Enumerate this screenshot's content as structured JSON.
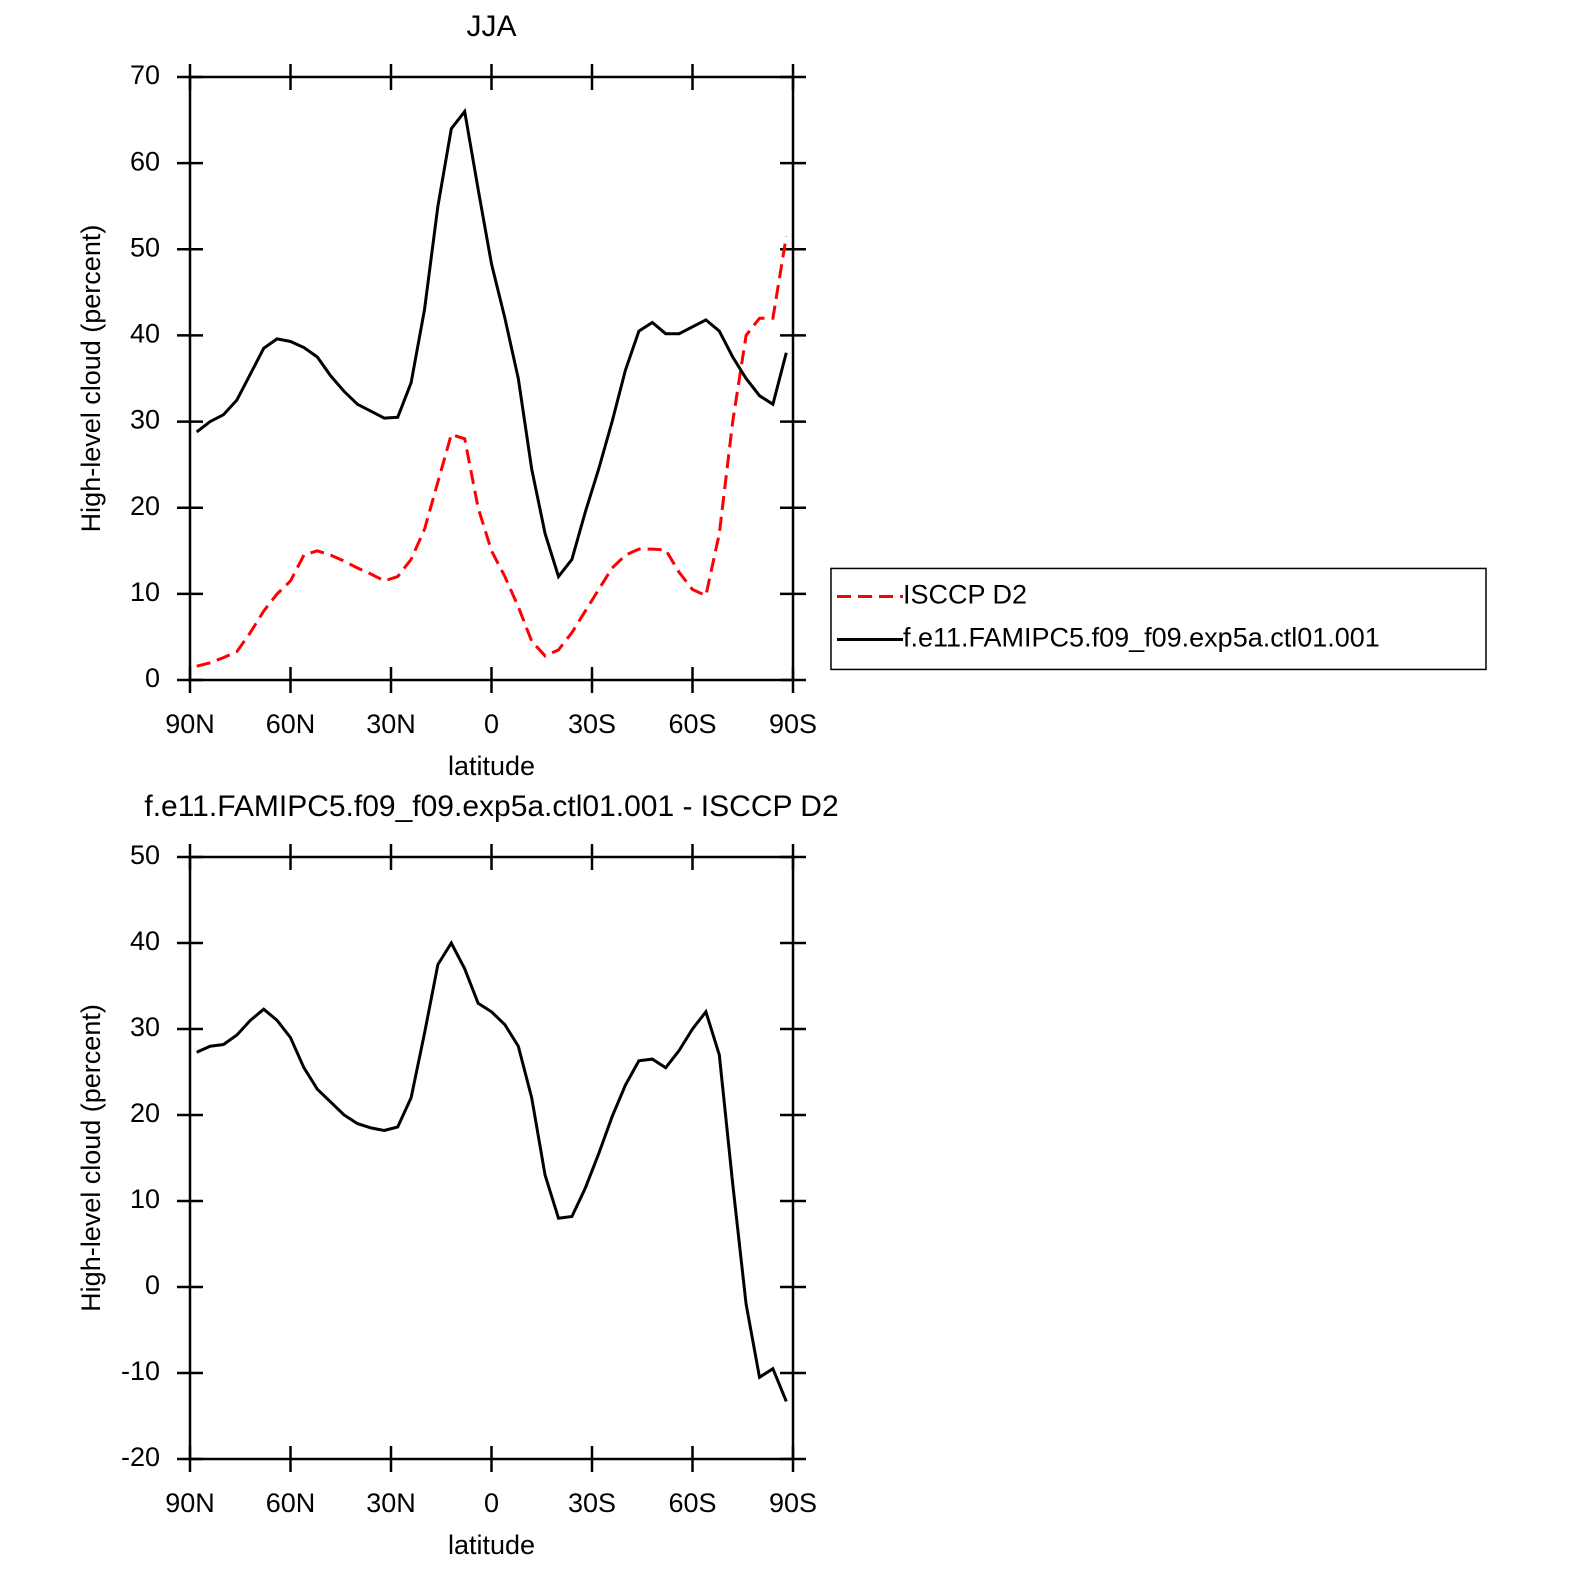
{
  "chart_data": [
    {
      "type": "line",
      "title": "JJA",
      "xlabel": "latitude",
      "ylabel": "High-level cloud (percent)",
      "x": [
        88,
        84,
        80,
        76,
        72,
        68,
        64,
        60,
        56,
        52,
        48,
        44,
        40,
        36,
        32,
        28,
        24,
        20,
        16,
        12,
        8,
        4,
        0,
        -4,
        -8,
        -12,
        -16,
        -20,
        -24,
        -28,
        -32,
        -36,
        -40,
        -44,
        -48,
        -52,
        -56,
        -60,
        -64,
        -68,
        -72,
        -76,
        -80,
        -84,
        -88
      ],
      "xlim": [
        90,
        -90
      ],
      "xticks": [
        {
          "value": 90,
          "label": "90N"
        },
        {
          "value": 60,
          "label": "60N"
        },
        {
          "value": 30,
          "label": "30N"
        },
        0,
        {
          "value": -30,
          "label": "30S"
        },
        {
          "value": -60,
          "label": "60S"
        },
        {
          "value": -90,
          "label": "90S"
        }
      ],
      "ylim": [
        0,
        70
      ],
      "yticks": [
        0,
        10,
        20,
        30,
        40,
        50,
        60,
        70
      ],
      "legend": "right",
      "series": [
        {
          "name": "ISCCP D2",
          "color": "#ff0000",
          "linestyle": "dashed",
          "values": [
            1.6,
            2,
            2.6,
            3.3,
            5.5,
            8,
            10,
            11.5,
            14.5,
            15,
            14.5,
            13.8,
            13,
            12.3,
            11.5,
            12,
            14,
            17.5,
            23,
            28.5,
            28,
            20,
            15,
            12,
            8.5,
            4.5,
            2.8,
            3.5,
            5.5,
            8,
            10.5,
            13,
            14.5,
            15.2,
            15.2,
            15.1,
            12.5,
            10.5,
            9.8,
            17,
            30,
            40,
            42,
            42,
            51.5
          ]
        },
        {
          "name": "f.e11.FAMIPC5.f09_f09.exp5a.ctl01.001",
          "color": "#000000",
          "linestyle": "solid",
          "values": [
            28.8,
            30,
            30.8,
            32.5,
            35.5,
            38.5,
            39.6,
            39.3,
            38.6,
            37.5,
            35.3,
            33.5,
            32,
            31.2,
            30.4,
            30.5,
            34.5,
            43,
            55,
            64,
            66,
            57,
            48.3,
            42,
            35,
            24.5,
            17,
            12,
            14,
            19.5,
            24.5,
            30,
            36,
            40.5,
            41.5,
            40.2,
            40.2,
            41,
            41.8,
            40.5,
            37.5,
            35,
            33,
            32,
            38
          ]
        }
      ]
    },
    {
      "type": "line",
      "title": "f.e11.FAMIPC5.f09_f09.exp5a.ctl01.001 - ISCCP D2",
      "xlabel": "latitude",
      "ylabel": "High-level cloud (percent)",
      "x": [
        88,
        84,
        80,
        76,
        72,
        68,
        64,
        60,
        56,
        52,
        48,
        44,
        40,
        36,
        32,
        28,
        24,
        20,
        16,
        12,
        8,
        4,
        0,
        -4,
        -8,
        -12,
        -16,
        -20,
        -24,
        -28,
        -32,
        -36,
        -40,
        -44,
        -48,
        -52,
        -56,
        -60,
        -64,
        -68,
        -72,
        -76,
        -80,
        -84,
        -88
      ],
      "xlim": [
        90,
        -90
      ],
      "xticks": [
        {
          "value": 90,
          "label": "90N"
        },
        {
          "value": 60,
          "label": "60N"
        },
        {
          "value": 30,
          "label": "30N"
        },
        0,
        {
          "value": -30,
          "label": "30S"
        },
        {
          "value": -60,
          "label": "60S"
        },
        {
          "value": -90,
          "label": "90S"
        }
      ],
      "ylim": [
        -20,
        50
      ],
      "yticks": [
        -20,
        -10,
        0,
        10,
        20,
        30,
        40,
        50
      ],
      "series": [
        {
          "color": "#000000",
          "linestyle": "solid",
          "values": [
            27.3,
            28,
            28.2,
            29.3,
            31,
            32.3,
            31,
            29,
            25.5,
            23,
            21.5,
            20,
            19,
            18.5,
            18.2,
            18.6,
            22,
            29.5,
            37.5,
            40,
            37,
            33,
            32,
            30.5,
            28,
            22,
            13,
            8,
            8.2,
            11.5,
            15.5,
            19.8,
            23.5,
            26.3,
            26.5,
            25.5,
            27.5,
            30,
            32,
            27,
            12,
            -2,
            -10.5,
            -9.5,
            -13.3
          ]
        }
      ]
    }
  ]
}
